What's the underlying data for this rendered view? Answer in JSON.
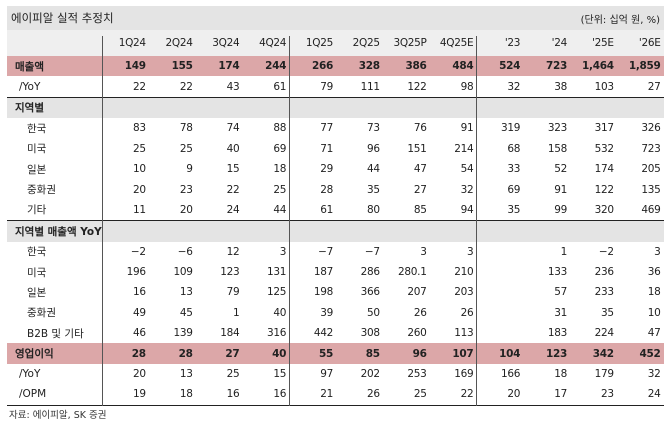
{
  "title": "에이피알 실적 추정치",
  "unit": "(단위: 십억 원, %)",
  "columns": [
    "1Q24",
    "2Q24",
    "3Q24",
    "4Q24",
    "1Q25",
    "2Q25",
    "3Q25P",
    "4Q25E",
    "'23",
    "'24",
    "'25E",
    "'26E"
  ],
  "rows": [
    {
      "label": "매출액",
      "type": "hl",
      "values": [
        "149",
        "155",
        "174",
        "244",
        "266",
        "328",
        "386",
        "484",
        "524",
        "723",
        "1,464",
        "1,859"
      ]
    },
    {
      "label": "/YoY",
      "type": "sub",
      "values": [
        "22",
        "22",
        "43",
        "61",
        "79",
        "111",
        "122",
        "98",
        "32",
        "38",
        "103",
        "27"
      ]
    },
    {
      "label": "지역별",
      "type": "section",
      "values": []
    },
    {
      "label": "한국",
      "type": "ind",
      "values": [
        "83",
        "78",
        "74",
        "88",
        "77",
        "73",
        "76",
        "91",
        "319",
        "323",
        "317",
        "326"
      ]
    },
    {
      "label": "미국",
      "type": "ind",
      "values": [
        "25",
        "25",
        "40",
        "69",
        "71",
        "96",
        "151",
        "214",
        "68",
        "158",
        "532",
        "723"
      ]
    },
    {
      "label": "일본",
      "type": "ind",
      "values": [
        "10",
        "9",
        "15",
        "18",
        "29",
        "44",
        "47",
        "54",
        "33",
        "52",
        "174",
        "205"
      ]
    },
    {
      "label": "중화권",
      "type": "ind",
      "values": [
        "20",
        "23",
        "22",
        "25",
        "28",
        "35",
        "27",
        "32",
        "69",
        "91",
        "122",
        "135"
      ]
    },
    {
      "label": "기타",
      "type": "ind",
      "values": [
        "11",
        "20",
        "24",
        "44",
        "61",
        "80",
        "85",
        "94",
        "35",
        "99",
        "320",
        "469"
      ]
    },
    {
      "label": "지역별 매출액 YoY",
      "type": "section",
      "values": []
    },
    {
      "label": "한국",
      "type": "ind",
      "values": [
        "-2",
        "-6",
        "12",
        "3",
        "-7",
        "-7",
        "3",
        "3",
        "",
        "1",
        "-2",
        "3"
      ]
    },
    {
      "label": "미국",
      "type": "ind",
      "values": [
        "196",
        "109",
        "123",
        "131",
        "187",
        "286",
        "280.1",
        "210",
        "",
        "133",
        "236",
        "36"
      ]
    },
    {
      "label": "일본",
      "type": "ind",
      "values": [
        "16",
        "13",
        "79",
        "125",
        "198",
        "366",
        "207",
        "203",
        "",
        "57",
        "233",
        "18"
      ]
    },
    {
      "label": "중화권",
      "type": "ind",
      "values": [
        "49",
        "45",
        "1",
        "40",
        "39",
        "50",
        "26",
        "26",
        "",
        "31",
        "35",
        "10"
      ]
    },
    {
      "label": "B2B 및 기타",
      "type": "ind",
      "values": [
        "46",
        "139",
        "184",
        "316",
        "442",
        "308",
        "260",
        "113",
        "",
        "183",
        "224",
        "47"
      ]
    },
    {
      "label": "영업이익",
      "type": "hl",
      "values": [
        "28",
        "28",
        "27",
        "40",
        "55",
        "85",
        "96",
        "107",
        "104",
        "123",
        "342",
        "452"
      ]
    },
    {
      "label": "/YoY",
      "type": "sub",
      "values": [
        "20",
        "13",
        "25",
        "15",
        "97",
        "202",
        "253",
        "169",
        "166",
        "18",
        "179",
        "32"
      ]
    },
    {
      "label": "/OPM",
      "type": "sub",
      "values": [
        "19",
        "18",
        "16",
        "16",
        "21",
        "26",
        "25",
        "22",
        "20",
        "17",
        "23",
        "24"
      ]
    }
  ],
  "source": "자료: 에이피알, SK 증권",
  "colors": {
    "highlight": "#dca7a8",
    "section": "#e4e4e4"
  }
}
